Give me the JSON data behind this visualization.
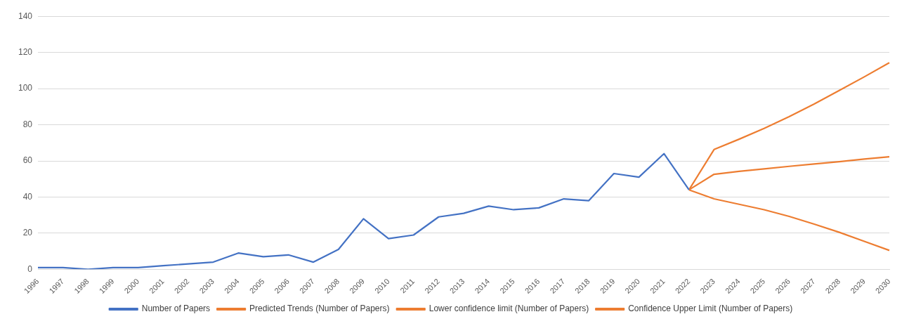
{
  "chart_data": {
    "type": "line",
    "categories": [
      "1996",
      "1997",
      "1998",
      "1999",
      "2000",
      "2001",
      "2002",
      "2003",
      "2004",
      "2005",
      "2006",
      "2007",
      "2008",
      "2009",
      "2010",
      "2011",
      "2012",
      "2013",
      "2014",
      "2015",
      "2016",
      "2017",
      "2018",
      "2019",
      "2020",
      "2021",
      "2022",
      "2023",
      "2024",
      "2025",
      "2026",
      "2027",
      "2028",
      "2029",
      "2030"
    ],
    "series": [
      {
        "name": "Number of Papers",
        "color": "#4472c4",
        "values": [
          1,
          1,
          0,
          1,
          1,
          2,
          3,
          4,
          9,
          7,
          8,
          4,
          11,
          28,
          17,
          19,
          29,
          31,
          35,
          33,
          34,
          39,
          38,
          53,
          51,
          64,
          44,
          null,
          null,
          null,
          null,
          null,
          null,
          null,
          null
        ]
      },
      {
        "name": "Predicted Trends (Number of Papers)",
        "color": "#ed7d31",
        "values": [
          null,
          null,
          null,
          null,
          null,
          null,
          null,
          null,
          null,
          null,
          null,
          null,
          null,
          null,
          null,
          null,
          null,
          null,
          null,
          null,
          null,
          null,
          null,
          null,
          null,
          null,
          44,
          52.6,
          54.2,
          55.6,
          57,
          58.3,
          59.6,
          61,
          62.3
        ]
      },
      {
        "name": "Lower confidence limit (Number of Papers)",
        "color": "#ed7d31",
        "values": [
          null,
          null,
          null,
          null,
          null,
          null,
          null,
          null,
          null,
          null,
          null,
          null,
          null,
          null,
          null,
          null,
          null,
          null,
          null,
          null,
          null,
          null,
          null,
          null,
          null,
          null,
          44,
          39,
          36,
          33,
          29.3,
          25,
          20.5,
          15.5,
          10.5
        ]
      },
      {
        "name": "Confidence Upper Limit (Number of Papers)",
        "color": "#ed7d31",
        "values": [
          null,
          null,
          null,
          null,
          null,
          null,
          null,
          null,
          null,
          null,
          null,
          null,
          null,
          null,
          null,
          null,
          null,
          null,
          null,
          null,
          null,
          null,
          null,
          null,
          null,
          null,
          44,
          66.3,
          72,
          78,
          84.5,
          91.5,
          99,
          106.5,
          114.3
        ]
      }
    ],
    "ylim": [
      0,
      140
    ],
    "yticks": [
      0,
      20,
      40,
      60,
      80,
      100,
      120,
      140
    ],
    "grid": "y",
    "legend": "bottom",
    "marker": "none",
    "line_style": "solid"
  }
}
